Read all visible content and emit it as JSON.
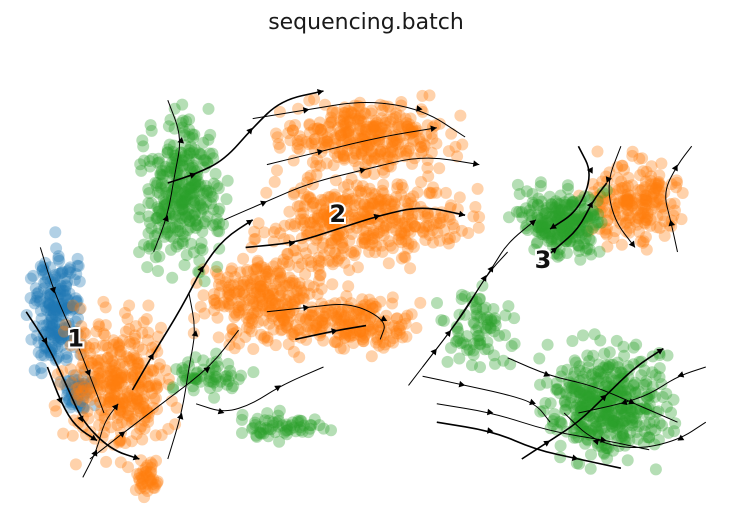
{
  "chart_data": {
    "type": "scatter",
    "title": "sequencing.batch",
    "xlabel": "",
    "ylabel": "",
    "grid": false,
    "legend": "none",
    "series": [
      {
        "color": "#1f77b4"
      },
      {
        "color": "#ff7f0e"
      },
      {
        "color": "#2ca02c"
      }
    ],
    "cluster_labels": [
      {
        "label": "1",
        "x": 0.09,
        "y": 0.36
      },
      {
        "label": "2",
        "x": 0.46,
        "y": 0.63
      },
      {
        "label": "3",
        "x": 0.75,
        "y": 0.53
      }
    ],
    "clouds": [
      {
        "series": 0,
        "cx": 0.06,
        "cy": 0.43,
        "rx": 0.055,
        "ry": 0.19,
        "n": 200
      },
      {
        "series": 0,
        "cx": 0.09,
        "cy": 0.25,
        "rx": 0.035,
        "ry": 0.06,
        "n": 50
      },
      {
        "series": 1,
        "cx": 0.15,
        "cy": 0.27,
        "rx": 0.11,
        "ry": 0.21,
        "n": 340
      },
      {
        "series": 1,
        "cx": 0.19,
        "cy": 0.06,
        "rx": 0.025,
        "ry": 0.06,
        "n": 40
      },
      {
        "series": 1,
        "cx": 0.5,
        "cy": 0.8,
        "rx": 0.16,
        "ry": 0.11,
        "n": 320
      },
      {
        "series": 1,
        "cx": 0.5,
        "cy": 0.62,
        "rx": 0.2,
        "ry": 0.13,
        "n": 380
      },
      {
        "series": 1,
        "cx": 0.36,
        "cy": 0.45,
        "rx": 0.14,
        "ry": 0.15,
        "n": 300
      },
      {
        "series": 1,
        "cx": 0.49,
        "cy": 0.39,
        "rx": 0.11,
        "ry": 0.08,
        "n": 160
      },
      {
        "series": 1,
        "cx": 0.88,
        "cy": 0.66,
        "rx": 0.09,
        "ry": 0.13,
        "n": 200
      },
      {
        "series": 2,
        "cx": 0.24,
        "cy": 0.68,
        "rx": 0.075,
        "ry": 0.23,
        "n": 320
      },
      {
        "series": 2,
        "cx": 0.27,
        "cy": 0.28,
        "rx": 0.09,
        "ry": 0.06,
        "n": 60
      },
      {
        "series": 2,
        "cx": 0.38,
        "cy": 0.17,
        "rx": 0.1,
        "ry": 0.04,
        "n": 60
      },
      {
        "series": 2,
        "cx": 0.78,
        "cy": 0.62,
        "rx": 0.085,
        "ry": 0.1,
        "n": 240
      },
      {
        "series": 2,
        "cx": 0.84,
        "cy": 0.22,
        "rx": 0.12,
        "ry": 0.17,
        "n": 420
      },
      {
        "series": 2,
        "cx": 0.66,
        "cy": 0.38,
        "rx": 0.07,
        "ry": 0.12,
        "n": 80
      }
    ],
    "streamlines": [
      [
        [
          0.02,
          0.42
        ],
        [
          0.05,
          0.35
        ],
        [
          0.08,
          0.25
        ],
        [
          0.1,
          0.18
        ],
        [
          0.14,
          0.12
        ],
        [
          0.18,
          0.1
        ]
      ],
      [
        [
          0.04,
          0.56
        ],
        [
          0.06,
          0.46
        ],
        [
          0.09,
          0.36
        ],
        [
          0.11,
          0.28
        ],
        [
          0.13,
          0.2
        ]
      ],
      [
        [
          0.11,
          0.1
        ],
        [
          0.16,
          0.16
        ],
        [
          0.22,
          0.23
        ],
        [
          0.28,
          0.3
        ],
        [
          0.32,
          0.38
        ]
      ],
      [
        [
          0.17,
          0.25
        ],
        [
          0.2,
          0.33
        ],
        [
          0.24,
          0.43
        ],
        [
          0.27,
          0.52
        ],
        [
          0.3,
          0.58
        ],
        [
          0.34,
          0.62
        ]
      ],
      [
        [
          0.22,
          0.1
        ],
        [
          0.24,
          0.2
        ],
        [
          0.25,
          0.3
        ],
        [
          0.26,
          0.38
        ],
        [
          0.25,
          0.46
        ]
      ],
      [
        [
          0.2,
          0.55
        ],
        [
          0.22,
          0.63
        ],
        [
          0.23,
          0.72
        ],
        [
          0.24,
          0.8
        ],
        [
          0.22,
          0.88
        ]
      ],
      [
        [
          0.22,
          0.7
        ],
        [
          0.26,
          0.72
        ],
        [
          0.3,
          0.75
        ],
        [
          0.34,
          0.82
        ],
        [
          0.38,
          0.88
        ],
        [
          0.44,
          0.9
        ]
      ],
      [
        [
          0.3,
          0.62
        ],
        [
          0.36,
          0.66
        ],
        [
          0.42,
          0.7
        ],
        [
          0.5,
          0.73
        ],
        [
          0.58,
          0.76
        ],
        [
          0.66,
          0.74
        ]
      ],
      [
        [
          0.34,
          0.84
        ],
        [
          0.42,
          0.86
        ],
        [
          0.5,
          0.88
        ],
        [
          0.58,
          0.86
        ],
        [
          0.64,
          0.8
        ]
      ],
      [
        [
          0.33,
          0.56
        ],
        [
          0.4,
          0.57
        ],
        [
          0.46,
          0.6
        ],
        [
          0.52,
          0.63
        ],
        [
          0.58,
          0.65
        ],
        [
          0.64,
          0.63
        ]
      ],
      [
        [
          0.36,
          0.74
        ],
        [
          0.44,
          0.77
        ],
        [
          0.52,
          0.8
        ],
        [
          0.6,
          0.82
        ]
      ],
      [
        [
          0.36,
          0.42
        ],
        [
          0.42,
          0.43
        ],
        [
          0.48,
          0.44
        ],
        [
          0.53,
          0.4
        ],
        [
          0.52,
          0.36
        ]
      ],
      [
        [
          0.4,
          0.36
        ],
        [
          0.46,
          0.38
        ],
        [
          0.5,
          0.39
        ]
      ],
      [
        [
          0.58,
          0.3
        ],
        [
          0.62,
          0.38
        ],
        [
          0.65,
          0.45
        ],
        [
          0.68,
          0.52
        ],
        [
          0.7,
          0.57
        ],
        [
          0.74,
          0.62
        ]
      ],
      [
        [
          0.56,
          0.26
        ],
        [
          0.6,
          0.34
        ],
        [
          0.64,
          0.42
        ],
        [
          0.67,
          0.5
        ],
        [
          0.7,
          0.55
        ]
      ],
      [
        [
          0.74,
          0.52
        ],
        [
          0.77,
          0.56
        ],
        [
          0.8,
          0.6
        ],
        [
          0.82,
          0.66
        ],
        [
          0.84,
          0.7
        ]
      ],
      [
        [
          0.86,
          0.78
        ],
        [
          0.84,
          0.7
        ],
        [
          0.85,
          0.62
        ],
        [
          0.88,
          0.56
        ]
      ],
      [
        [
          0.94,
          0.55
        ],
        [
          0.93,
          0.62
        ],
        [
          0.92,
          0.68
        ],
        [
          0.94,
          0.74
        ],
        [
          0.96,
          0.78
        ]
      ],
      [
        [
          0.8,
          0.78
        ],
        [
          0.82,
          0.72
        ],
        [
          0.8,
          0.64
        ],
        [
          0.76,
          0.6
        ]
      ],
      [
        [
          0.58,
          0.28
        ],
        [
          0.64,
          0.26
        ],
        [
          0.7,
          0.24
        ],
        [
          0.74,
          0.22
        ],
        [
          0.76,
          0.18
        ]
      ],
      [
        [
          0.6,
          0.22
        ],
        [
          0.68,
          0.2
        ],
        [
          0.76,
          0.16
        ],
        [
          0.84,
          0.14
        ],
        [
          0.9,
          0.12
        ]
      ],
      [
        [
          0.6,
          0.18
        ],
        [
          0.68,
          0.16
        ],
        [
          0.74,
          0.12
        ],
        [
          0.8,
          0.1
        ],
        [
          0.86,
          0.08
        ]
      ],
      [
        [
          0.98,
          0.3
        ],
        [
          0.94,
          0.28
        ],
        [
          0.9,
          0.24
        ],
        [
          0.86,
          0.22
        ],
        [
          0.8,
          0.2
        ]
      ],
      [
        [
          0.98,
          0.18
        ],
        [
          0.94,
          0.14
        ],
        [
          0.88,
          0.12
        ],
        [
          0.82,
          0.14
        ],
        [
          0.78,
          0.2
        ]
      ],
      [
        [
          0.72,
          0.1
        ],
        [
          0.76,
          0.14
        ],
        [
          0.8,
          0.18
        ],
        [
          0.84,
          0.24
        ],
        [
          0.88,
          0.3
        ],
        [
          0.92,
          0.34
        ]
      ],
      [
        [
          0.7,
          0.32
        ],
        [
          0.76,
          0.28
        ],
        [
          0.82,
          0.26
        ],
        [
          0.88,
          0.22
        ],
        [
          0.94,
          0.18
        ]
      ],
      [
        [
          0.1,
          0.06
        ],
        [
          0.12,
          0.12
        ],
        [
          0.13,
          0.18
        ],
        [
          0.15,
          0.22
        ]
      ],
      [
        [
          0.05,
          0.3
        ],
        [
          0.07,
          0.22
        ],
        [
          0.09,
          0.17
        ],
        [
          0.12,
          0.14
        ]
      ],
      [
        [
          0.26,
          0.22
        ],
        [
          0.3,
          0.2
        ],
        [
          0.34,
          0.22
        ],
        [
          0.38,
          0.26
        ],
        [
          0.44,
          0.3
        ]
      ]
    ]
  }
}
